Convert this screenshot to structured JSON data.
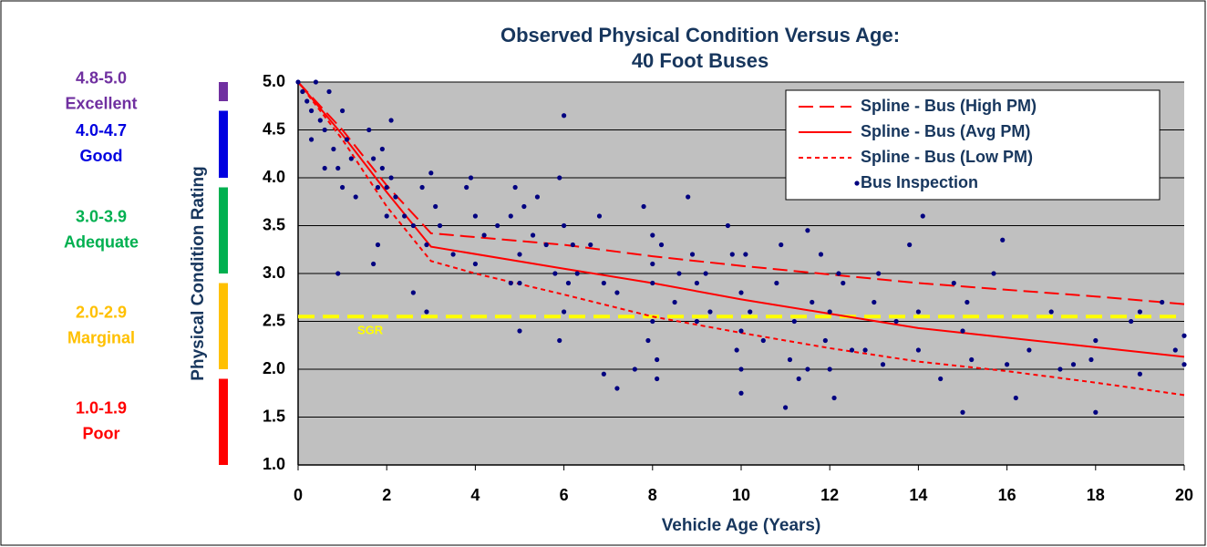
{
  "chart_data": {
    "type": "scatter",
    "title_lines": [
      "Observed Physical Condition Versus Age:",
      "40 Foot Buses"
    ],
    "x_label": "Vehicle Age (Years)",
    "y_label": "Physical Condition Rating",
    "xlim": [
      0,
      20
    ],
    "ylim": [
      1,
      5
    ],
    "xticks": [
      0,
      2,
      4,
      6,
      8,
      10,
      12,
      14,
      16,
      18,
      20
    ],
    "yticks": [
      {
        "value": 1,
        "label": "1.0"
      },
      {
        "value": 1.5,
        "label": "1.5"
      },
      {
        "value": 2,
        "label": "2.0"
      },
      {
        "value": 2.5,
        "label": "2.5"
      },
      {
        "value": 3,
        "label": "3.0"
      },
      {
        "value": 3.5,
        "label": "3.5"
      },
      {
        "value": 4,
        "label": "4.0"
      },
      {
        "value": 4.5,
        "label": "4.5"
      },
      {
        "value": 5,
        "label": "5.0"
      }
    ],
    "grid": true,
    "legend": "top-right",
    "plot_background": "#c0c0c0",
    "series": [
      {
        "name": "Spline - Bus (High PM)",
        "color": "#ff0000",
        "style": "long-dash",
        "x": [
          0,
          1,
          2,
          3,
          6,
          8,
          10,
          12,
          14,
          16,
          18,
          20
        ],
        "values": [
          5.0,
          4.5,
          3.92,
          3.42,
          3.3,
          3.18,
          3.08,
          2.99,
          2.9,
          2.83,
          2.76,
          2.68
        ]
      },
      {
        "name": "Spline - Bus (Avg PM)",
        "color": "#ff0000",
        "style": "solid",
        "x": [
          0,
          1,
          2,
          3,
          6,
          8,
          10,
          12,
          14,
          16,
          18,
          20
        ],
        "values": [
          5.0,
          4.45,
          3.85,
          3.28,
          3.05,
          2.9,
          2.73,
          2.58,
          2.43,
          2.33,
          2.23,
          2.13
        ]
      },
      {
        "name": "Spline - Bus (Low PM)",
        "color": "#ff0000",
        "style": "short-dash",
        "x": [
          0,
          1,
          2,
          3,
          4,
          6,
          8,
          10,
          12,
          14,
          16,
          18,
          20
        ],
        "values": [
          5.0,
          4.4,
          3.7,
          3.13,
          3.0,
          2.78,
          2.55,
          2.38,
          2.22,
          2.08,
          1.98,
          1.86,
          1.73
        ]
      },
      {
        "name": "Bus Inspection",
        "color": "#000080",
        "style": "points",
        "x": [
          0,
          0.1,
          0.2,
          0.3,
          0.4,
          0.5,
          0.6,
          0.7,
          0.8,
          0.9,
          1.0,
          1.1,
          1.2,
          0.9,
          0.3,
          1.0,
          0.6,
          1.3,
          1.6,
          1.7,
          1.8,
          1.8,
          1.9,
          2.0,
          2.1,
          2.0,
          2.2,
          1.7,
          2.4,
          2.6,
          2.8,
          2.9,
          2.6,
          2.9,
          1.9,
          2.1,
          3.0,
          3.1,
          3.2,
          3.5,
          3.8,
          4.0,
          4.0,
          3.9,
          4.2,
          4.5,
          4.8,
          4.9,
          5.0,
          5.0,
          5.1,
          5.3,
          4.8,
          5.4,
          5.0,
          5.6,
          5.8,
          6.0,
          6.0,
          6.1,
          6.2,
          5.9,
          6.3,
          6.0,
          5.9,
          6.6,
          6.8,
          6.9,
          6.9,
          7.2,
          7.2,
          7.6,
          7.8,
          8.0,
          8.0,
          8.0,
          8.1,
          7.9,
          8.2,
          8.1,
          8.5,
          8.6,
          8.8,
          8.9,
          9.0,
          9.0,
          9.2,
          9.3,
          8.0,
          9.7,
          9.8,
          10.0,
          10.0,
          10.0,
          10.0,
          10.1,
          10.2,
          10.5,
          10.8,
          10.9,
          9.9,
          11.0,
          11.1,
          11.2,
          11.3,
          11.5,
          11.6,
          11.8,
          11.9,
          12.0,
          12.0,
          12.1,
          12.3,
          12.5,
          11.5,
          12.2,
          12.8,
          13.0,
          13.1,
          13.5,
          13.8,
          14.0,
          14.1,
          14.0,
          13.2,
          14.5,
          14.8,
          15.0,
          15.0,
          15.1,
          15.2,
          15.7,
          15.9,
          16.0,
          16.2,
          16.5,
          17.0,
          17.2,
          17.5,
          18.0,
          18.0,
          17.9,
          18.8,
          19.0,
          19.0,
          19.5,
          19.8,
          20.0,
          20.0
        ],
        "values": [
          5.0,
          4.9,
          4.8,
          4.7,
          5.0,
          4.6,
          4.5,
          4.9,
          4.3,
          4.1,
          4.7,
          4.4,
          4.2,
          3.0,
          4.4,
          3.9,
          4.1,
          3.8,
          4.5,
          4.2,
          3.9,
          3.3,
          4.1,
          3.9,
          4.6,
          3.6,
          3.8,
          3.1,
          3.6,
          3.5,
          3.9,
          3.3,
          2.8,
          2.6,
          4.3,
          4.0,
          4.05,
          3.7,
          3.5,
          3.2,
          3.9,
          3.1,
          3.6,
          4.0,
          3.4,
          3.5,
          3.6,
          3.9,
          3.2,
          2.9,
          3.7,
          3.4,
          2.9,
          3.8,
          2.4,
          3.3,
          3.0,
          3.5,
          4.65,
          2.9,
          3.3,
          4.0,
          3.0,
          2.6,
          2.3,
          3.3,
          3.6,
          2.9,
          1.95,
          2.8,
          1.8,
          2.0,
          3.7,
          3.4,
          2.9,
          2.5,
          2.1,
          2.3,
          3.3,
          1.9,
          2.7,
          3.0,
          3.8,
          3.2,
          2.5,
          2.9,
          3.0,
          2.6,
          3.1,
          3.5,
          3.2,
          2.8,
          2.4,
          2.0,
          1.75,
          3.2,
          2.6,
          2.3,
          2.9,
          3.3,
          2.2,
          1.6,
          2.1,
          2.5,
          1.9,
          2.0,
          2.7,
          3.2,
          2.3,
          2.0,
          2.6,
          1.7,
          2.9,
          2.2,
          3.45,
          3.0,
          2.2,
          2.7,
          3.0,
          2.5,
          3.3,
          2.6,
          3.6,
          2.2,
          2.05,
          1.9,
          2.9,
          1.55,
          2.4,
          2.7,
          2.1,
          3.0,
          3.35,
          2.05,
          1.7,
          2.2,
          2.6,
          2.0,
          2.05,
          1.55,
          2.3,
          2.1,
          2.5,
          1.95,
          2.6,
          2.7,
          2.2,
          2.35,
          2.05
        ]
      }
    ],
    "reference_line": {
      "label": "SGR",
      "value": 2.55,
      "color": "#ffff00"
    },
    "condition_scale": [
      {
        "range": "4.8-5.0",
        "label": "Excellent",
        "color": "#7030a0",
        "low": 4.8,
        "high": 5.0
      },
      {
        "range": "4.0-4.7",
        "label": "Good",
        "color": "#0000e0",
        "low": 4.0,
        "high": 4.7
      },
      {
        "range": "3.0-3.9",
        "label": "Adequate",
        "color": "#00b050",
        "low": 3.0,
        "high": 3.9
      },
      {
        "range": "2.0-2.9",
        "label": "Marginal",
        "color": "#ffc000",
        "low": 2.0,
        "high": 2.9
      },
      {
        "range": "1.0-1.9",
        "label": "Poor",
        "color": "#ff0000",
        "low": 1.0,
        "high": 1.9
      }
    ]
  }
}
